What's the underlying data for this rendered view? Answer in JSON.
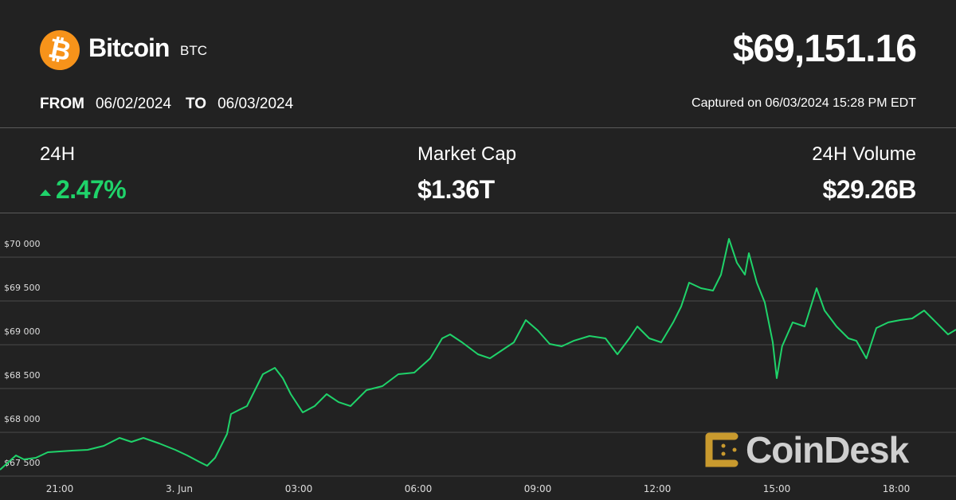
{
  "header": {
    "coin_name": "Bitcoin",
    "coin_symbol": "BTC",
    "price": "$69,151.16",
    "from_label": "FROM",
    "from_date": "06/02/2024",
    "to_label": "TO",
    "to_date": "06/03/2024",
    "captured": "Captured on 06/03/2024 15:28 PM EDT",
    "logo_icon": "bitcoin-icon",
    "logo_color": "#f7931a"
  },
  "stats": {
    "change_label": "24H",
    "change_value": "2.47%",
    "change_direction": "up",
    "change_color": "#1fd36a",
    "market_cap_label": "Market Cap",
    "market_cap_value": "$1.36T",
    "volume_label": "24H Volume",
    "volume_value": "$29.26B"
  },
  "watermark": {
    "text": "CoinDesk",
    "mark_color": "#c99a2e"
  },
  "chart_data": {
    "type": "line",
    "line_color": "#1fd36a",
    "grid": true,
    "ylim": [
      67450,
      70250
    ],
    "xlim": [
      "2024-06-02T19:30",
      "2024-06-03T19:30"
    ],
    "y_ticks": [
      {
        "value": 70000,
        "label": "$70 000"
      },
      {
        "value": 69500,
        "label": "$69 500"
      },
      {
        "value": 69000,
        "label": "$69 000"
      },
      {
        "value": 68500,
        "label": "$68 500"
      },
      {
        "value": 68000,
        "label": "$68 000"
      },
      {
        "value": 67500,
        "label": "$67 500"
      }
    ],
    "x_ticks": [
      {
        "t": "2024-06-02T21:00",
        "label": "21:00"
      },
      {
        "t": "2024-06-03T00:00",
        "label": "3. Jun"
      },
      {
        "t": "2024-06-03T03:00",
        "label": "03:00"
      },
      {
        "t": "2024-06-03T06:00",
        "label": "06:00"
      },
      {
        "t": "2024-06-03T09:00",
        "label": "09:00"
      },
      {
        "t": "2024-06-03T12:00",
        "label": "12:00"
      },
      {
        "t": "2024-06-03T15:00",
        "label": "15:00"
      },
      {
        "t": "2024-06-03T18:00",
        "label": "18:00"
      }
    ],
    "series": [
      {
        "points": [
          [
            "2024-06-02T19:30",
            67573
          ],
          [
            "2024-06-02T19:54",
            67736
          ],
          [
            "2024-06-02T20:06",
            67691
          ],
          [
            "2024-06-02T20:24",
            67709
          ],
          [
            "2024-06-02T20:42",
            67773
          ],
          [
            "2024-06-02T21:18",
            67791
          ],
          [
            "2024-06-02T21:42",
            67800
          ],
          [
            "2024-06-02T22:06",
            67845
          ],
          [
            "2024-06-02T22:30",
            67936
          ],
          [
            "2024-06-02T22:48",
            67891
          ],
          [
            "2024-06-02T23:06",
            67936
          ],
          [
            "2024-06-02T23:30",
            67873
          ],
          [
            "2024-06-02T23:54",
            67800
          ],
          [
            "2024-06-03T00:12",
            67736
          ],
          [
            "2024-06-03T00:30",
            67664
          ],
          [
            "2024-06-03T00:42",
            67618
          ],
          [
            "2024-06-03T00:54",
            67709
          ],
          [
            "2024-06-03T01:12",
            67982
          ],
          [
            "2024-06-03T01:18",
            68209
          ],
          [
            "2024-06-03T01:30",
            68255
          ],
          [
            "2024-06-03T01:42",
            68300
          ],
          [
            "2024-06-03T01:54",
            68482
          ],
          [
            "2024-06-03T02:06",
            68664
          ],
          [
            "2024-06-03T02:24",
            68736
          ],
          [
            "2024-06-03T02:36",
            68618
          ],
          [
            "2024-06-03T02:48",
            68436
          ],
          [
            "2024-06-03T03:06",
            68227
          ],
          [
            "2024-06-03T03:24",
            68300
          ],
          [
            "2024-06-03T03:42",
            68436
          ],
          [
            "2024-06-03T04:00",
            68345
          ],
          [
            "2024-06-03T04:18",
            68300
          ],
          [
            "2024-06-03T04:42",
            68482
          ],
          [
            "2024-06-03T05:06",
            68527
          ],
          [
            "2024-06-03T05:30",
            68664
          ],
          [
            "2024-06-03T05:54",
            68682
          ],
          [
            "2024-06-03T06:18",
            68845
          ],
          [
            "2024-06-03T06:36",
            69073
          ],
          [
            "2024-06-03T06:48",
            69118
          ],
          [
            "2024-06-03T07:06",
            69027
          ],
          [
            "2024-06-03T07:30",
            68891
          ],
          [
            "2024-06-03T07:48",
            68845
          ],
          [
            "2024-06-03T08:06",
            68936
          ],
          [
            "2024-06-03T08:24",
            69027
          ],
          [
            "2024-06-03T08:42",
            69282
          ],
          [
            "2024-06-03T09:00",
            69164
          ],
          [
            "2024-06-03T09:18",
            69009
          ],
          [
            "2024-06-03T09:36",
            68982
          ],
          [
            "2024-06-03T09:54",
            69045
          ],
          [
            "2024-06-03T10:18",
            69100
          ],
          [
            "2024-06-03T10:42",
            69073
          ],
          [
            "2024-06-03T11:00",
            68891
          ],
          [
            "2024-06-03T11:18",
            69073
          ],
          [
            "2024-06-03T11:30",
            69209
          ],
          [
            "2024-06-03T11:48",
            69073
          ],
          [
            "2024-06-03T12:06",
            69027
          ],
          [
            "2024-06-03T12:24",
            69255
          ],
          [
            "2024-06-03T12:36",
            69436
          ],
          [
            "2024-06-03T12:48",
            69709
          ],
          [
            "2024-06-03T13:06",
            69645
          ],
          [
            "2024-06-03T13:24",
            69618
          ],
          [
            "2024-06-03T13:36",
            69800
          ],
          [
            "2024-06-03T13:48",
            70209
          ],
          [
            "2024-06-03T14:00",
            69936
          ],
          [
            "2024-06-03T14:12",
            69800
          ],
          [
            "2024-06-03T14:18",
            70045
          ],
          [
            "2024-06-03T14:30",
            69709
          ],
          [
            "2024-06-03T14:42",
            69482
          ],
          [
            "2024-06-03T14:54",
            69027
          ],
          [
            "2024-06-03T15:00",
            68618
          ],
          [
            "2024-06-03T15:08",
            68982
          ],
          [
            "2024-06-03T15:24",
            69255
          ],
          [
            "2024-06-03T15:42",
            69209
          ],
          [
            "2024-06-03T16:00",
            69645
          ],
          [
            "2024-06-03T16:12",
            69391
          ],
          [
            "2024-06-03T16:30",
            69209
          ],
          [
            "2024-06-03T16:48",
            69073
          ],
          [
            "2024-06-03T17:00",
            69045
          ],
          [
            "2024-06-03T17:15",
            68845
          ],
          [
            "2024-06-03T17:30",
            69191
          ],
          [
            "2024-06-03T17:48",
            69255
          ],
          [
            "2024-06-03T18:06",
            69282
          ],
          [
            "2024-06-03T18:24",
            69300
          ],
          [
            "2024-06-03T18:42",
            69391
          ],
          [
            "2024-06-03T19:00",
            69255
          ],
          [
            "2024-06-03T19:18",
            69118
          ],
          [
            "2024-06-03T19:30",
            69173
          ]
        ]
      }
    ]
  }
}
